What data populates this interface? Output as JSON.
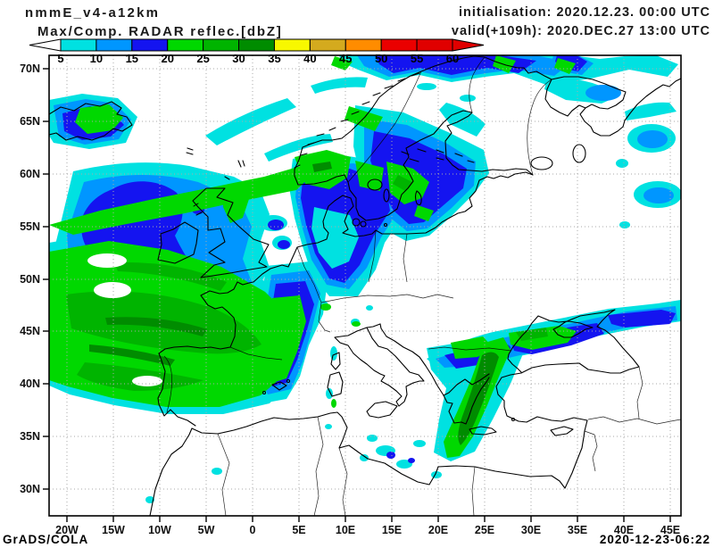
{
  "header": {
    "model": "nmmE_v4-a12km",
    "product": "Max/Comp. RADAR reflec.[dbZ]",
    "initialisation": "initialisation: 2020.12.23. 00:00 UTC",
    "valid": "valid(+109h): 2020.DEC.27 13:00 UTC"
  },
  "legend": {
    "units": "dbZ",
    "levels": [
      "5",
      "10",
      "15",
      "20",
      "25",
      "30",
      "35",
      "40",
      "45",
      "50",
      "55",
      "60"
    ],
    "segment_colors": [
      "#00e1e1",
      "#0096ff",
      "#1414f0",
      "#00d800",
      "#00b400",
      "#008c00",
      "#f8f800",
      "#d4aa1e",
      "#ff8c00",
      "#ea0000",
      "#e00000"
    ],
    "arrow_left_color": "#ffffff",
    "arrow_right_color": "#e00000"
  },
  "axes": {
    "lat_labels": [
      "70N",
      "65N",
      "60N",
      "55N",
      "50N",
      "45N",
      "40N",
      "35N",
      "30N"
    ],
    "lon_labels": [
      "20W",
      "15W",
      "10W",
      "5W",
      "0",
      "5E",
      "10E",
      "15E",
      "20E",
      "25E",
      "30E",
      "35E",
      "40E",
      "45E"
    ]
  },
  "footer": {
    "left": "GrADS/COLA",
    "right": "2020-12-23-06:22"
  },
  "map": {
    "palette": {
      "c5": "#00e1e1",
      "c10": "#0096ff",
      "c15": "#1414f0",
      "c20": "#00d800",
      "c25": "#00b400",
      "c30": "#008c00"
    },
    "grid_color": "#aaaaaa",
    "coast_color": "#000000"
  }
}
